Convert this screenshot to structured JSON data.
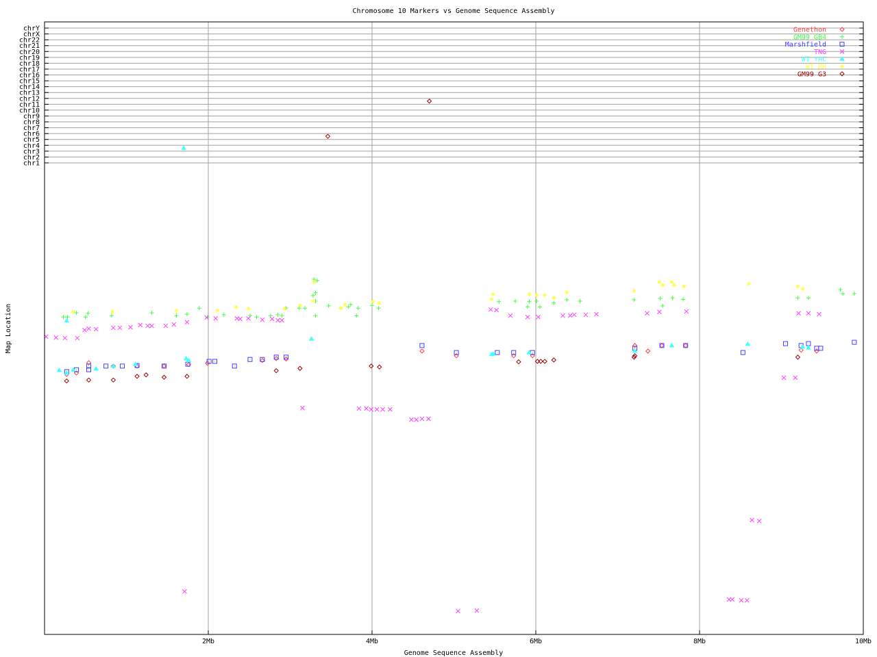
{
  "chart_data": {
    "type": "scatter",
    "title": "Chromosome 10 Markers vs Genome Sequence Assembly",
    "xlabel": "Genome Sequence Assembly",
    "ylabel": "Map Location",
    "xlim": [
      0,
      10
    ],
    "x_ticks": [
      {
        "value": 2,
        "label": "2Mb"
      },
      {
        "value": 4,
        "label": "4Mb"
      },
      {
        "value": 6,
        "label": "6Mb"
      },
      {
        "value": 8,
        "label": "8Mb"
      },
      {
        "value": 10,
        "label": "10Mb"
      }
    ],
    "y_chromosome_labels": [
      "chrY",
      "chrX",
      "chr22",
      "chr21",
      "chr20",
      "chr19",
      "chr18",
      "chr17",
      "chr16",
      "chr15",
      "chr14",
      "chr13",
      "chr12",
      "chr11",
      "chr10",
      "chr9",
      "chr8",
      "chr7",
      "chr6",
      "chr5",
      "chr4",
      "chr3",
      "chr2",
      "chr1"
    ],
    "grid": true,
    "legend_position": "top-right",
    "series": [
      {
        "name": "Genethon",
        "color": "#ff4040",
        "marker": "diamond",
        "points": [
          [
            0.27,
            55.7
          ],
          [
            0.39,
            56.0
          ],
          [
            0.54,
            58.2
          ],
          [
            0.84,
            57.5
          ],
          [
            1.13,
            57.5
          ],
          [
            1.46,
            57.5
          ],
          [
            1.76,
            57.8
          ],
          [
            1.99,
            58.1
          ],
          [
            2.66,
            58.7
          ],
          [
            2.83,
            59.1
          ],
          [
            2.95,
            59.0
          ],
          [
            4.61,
            60.7
          ],
          [
            5.03,
            59.7
          ],
          [
            5.73,
            59.7
          ],
          [
            5.96,
            59.7
          ],
          [
            7.21,
            61.9
          ],
          [
            7.37,
            60.7
          ],
          [
            7.54,
            61.9
          ],
          [
            7.83,
            61.9
          ],
          [
            9.24,
            60.9
          ],
          [
            9.43,
            60.7
          ]
        ],
        "chromosome_hits": []
      },
      {
        "name": "GM99 GB4",
        "color": "#40ff40",
        "marker": "plus",
        "points": [
          [
            0.23,
            68.0
          ],
          [
            0.28,
            68.0
          ],
          [
            0.39,
            68.9
          ],
          [
            0.5,
            68.0
          ],
          [
            0.53,
            68.8
          ],
          [
            0.82,
            68.3
          ],
          [
            1.31,
            68.9
          ],
          [
            1.61,
            68.3
          ],
          [
            1.74,
            68.6
          ],
          [
            1.89,
            69.9
          ],
          [
            1.99,
            68.0
          ],
          [
            2.19,
            68.5
          ],
          [
            2.51,
            68.3
          ],
          [
            2.59,
            68.0
          ],
          [
            2.76,
            68.3
          ],
          [
            2.85,
            68.5
          ],
          [
            2.9,
            68.3
          ],
          [
            2.95,
            69.9
          ],
          [
            3.11,
            69.9
          ],
          [
            3.18,
            69.9
          ],
          [
            3.31,
            68.3
          ],
          [
            3.28,
            72.6
          ],
          [
            3.31,
            73.2
          ],
          [
            3.33,
            75.8
          ],
          [
            3.29,
            76.1
          ],
          [
            3.31,
            71.4
          ],
          [
            3.47,
            70.4
          ],
          [
            3.62,
            69.9
          ],
          [
            3.71,
            70.2
          ],
          [
            3.74,
            70.7
          ],
          [
            3.81,
            68.3
          ],
          [
            3.83,
            69.9
          ],
          [
            4.0,
            70.5
          ],
          [
            4.08,
            69.9
          ],
          [
            5.55,
            71.3
          ],
          [
            5.75,
            71.4
          ],
          [
            5.9,
            70.2
          ],
          [
            5.92,
            71.3
          ],
          [
            6.01,
            71.4
          ],
          [
            6.05,
            70.2
          ],
          [
            6.22,
            71.0
          ],
          [
            6.38,
            71.7
          ],
          [
            6.54,
            71.4
          ],
          [
            7.2,
            71.7
          ],
          [
            7.52,
            72.0
          ],
          [
            7.55,
            70.4
          ],
          [
            7.67,
            72.1
          ],
          [
            7.8,
            71.8
          ],
          [
            9.2,
            72.1
          ],
          [
            9.33,
            72.1
          ],
          [
            9.72,
            73.9
          ],
          [
            9.75,
            73.0
          ],
          [
            9.89,
            73.0
          ]
        ],
        "chromosome_hits": []
      },
      {
        "name": "Marshfield",
        "color": "#4040ff",
        "marker": "square",
        "points": [
          [
            0.27,
            56.3
          ],
          [
            0.39,
            56.7
          ],
          [
            0.54,
            56.7
          ],
          [
            0.54,
            57.5
          ],
          [
            0.75,
            57.5
          ],
          [
            0.95,
            57.5
          ],
          [
            1.13,
            57.6
          ],
          [
            1.46,
            57.5
          ],
          [
            1.75,
            57.9
          ],
          [
            2.01,
            58.5
          ],
          [
            2.08,
            58.5
          ],
          [
            2.32,
            57.5
          ],
          [
            2.51,
            58.9
          ],
          [
            2.66,
            58.9
          ],
          [
            2.83,
            59.4
          ],
          [
            2.95,
            59.4
          ],
          [
            4.61,
            61.9
          ],
          [
            5.03,
            60.4
          ],
          [
            5.53,
            60.4
          ],
          [
            5.73,
            60.4
          ],
          [
            5.96,
            60.4
          ],
          [
            7.21,
            61.3
          ],
          [
            7.54,
            61.9
          ],
          [
            7.83,
            61.9
          ],
          [
            8.53,
            60.4
          ],
          [
            9.05,
            62.3
          ],
          [
            9.24,
            61.9
          ],
          [
            9.33,
            62.3
          ],
          [
            9.43,
            61.3
          ],
          [
            9.48,
            61.3
          ],
          [
            9.89,
            62.6
          ]
        ],
        "chromosome_hits": []
      },
      {
        "name": "TNG",
        "color": "#ff40ff",
        "marker": "cross",
        "points": [
          [
            0.02,
            63.8
          ],
          [
            0.14,
            63.6
          ],
          [
            0.25,
            63.5
          ],
          [
            0.4,
            63.5
          ],
          [
            0.49,
            65.2
          ],
          [
            0.54,
            65.5
          ],
          [
            0.63,
            65.4
          ],
          [
            0.84,
            65.7
          ],
          [
            0.92,
            65.7
          ],
          [
            1.05,
            65.8
          ],
          [
            1.17,
            66.3
          ],
          [
            1.26,
            66.1
          ],
          [
            1.31,
            66.1
          ],
          [
            1.48,
            66.1
          ],
          [
            1.58,
            66.4
          ],
          [
            1.74,
            66.9
          ],
          [
            1.98,
            67.9
          ],
          [
            2.09,
            67.7
          ],
          [
            2.35,
            67.7
          ],
          [
            2.39,
            67.6
          ],
          [
            2.49,
            67.7
          ],
          [
            2.66,
            67.4
          ],
          [
            2.78,
            67.6
          ],
          [
            2.85,
            67.3
          ],
          [
            2.9,
            67.3
          ],
          [
            5.45,
            69.6
          ],
          [
            5.52,
            69.5
          ],
          [
            5.69,
            68.3
          ],
          [
            5.9,
            68.0
          ],
          [
            6.03,
            68.0
          ],
          [
            6.33,
            68.3
          ],
          [
            6.42,
            68.3
          ],
          [
            6.47,
            68.5
          ],
          [
            6.61,
            68.5
          ],
          [
            6.74,
            68.6
          ],
          [
            7.36,
            68.8
          ],
          [
            7.51,
            69.1
          ],
          [
            7.84,
            69.2
          ],
          [
            9.21,
            68.8
          ],
          [
            9.33,
            68.8
          ],
          [
            9.46,
            68.6
          ],
          [
            3.15,
            48.5
          ],
          [
            3.84,
            48.4
          ],
          [
            3.93,
            48.4
          ],
          [
            3.99,
            48.2
          ],
          [
            4.06,
            48.2
          ],
          [
            4.13,
            48.2
          ],
          [
            4.22,
            48.2
          ],
          [
            4.48,
            46.0
          ],
          [
            4.54,
            46.0
          ],
          [
            4.61,
            46.2
          ],
          [
            4.69,
            46.2
          ],
          [
            8.36,
            7.5
          ],
          [
            8.4,
            7.5
          ],
          [
            8.51,
            7.3
          ],
          [
            8.58,
            7.3
          ],
          [
            8.64,
            24.5
          ],
          [
            8.73,
            24.3
          ],
          [
            9.03,
            55.0
          ],
          [
            9.17,
            55.0
          ],
          [
            5.05,
            5.0
          ],
          [
            5.28,
            5.1
          ],
          [
            1.71,
            9.2
          ]
        ],
        "chromosome_hits": []
      },
      {
        "name": "WI YAC",
        "color": "#40ffff",
        "marker": "triangle",
        "points": [
          [
            0.18,
            56.6
          ],
          [
            0.27,
            56.0
          ],
          [
            0.35,
            56.7
          ],
          [
            0.63,
            56.9
          ],
          [
            0.84,
            57.5
          ],
          [
            1.11,
            57.9
          ],
          [
            1.73,
            59.1
          ],
          [
            1.76,
            58.7
          ],
          [
            3.26,
            63.3
          ],
          [
            5.46,
            60.0
          ],
          [
            5.48,
            60.1
          ],
          [
            5.92,
            60.4
          ],
          [
            7.21,
            60.7
          ],
          [
            7.66,
            61.9
          ],
          [
            8.59,
            62.2
          ],
          [
            9.26,
            61.6
          ],
          [
            9.33,
            61.4
          ],
          [
            0.27,
            67.2
          ]
        ],
        "chromosome_hits": [
          {
            "x": 1.7,
            "chr": "chr4"
          }
        ]
      },
      {
        "name": "WI RH",
        "color": "#ffff40",
        "marker": "asterisk",
        "points": [
          [
            0.35,
            69.1
          ],
          [
            0.83,
            69.2
          ],
          [
            1.61,
            69.4
          ],
          [
            2.11,
            69.4
          ],
          [
            2.34,
            70.1
          ],
          [
            2.49,
            69.8
          ],
          [
            2.93,
            69.8
          ],
          [
            3.12,
            70.5
          ],
          [
            3.29,
            75.5
          ],
          [
            3.28,
            71.4
          ],
          [
            3.62,
            69.9
          ],
          [
            3.67,
            70.7
          ],
          [
            4.01,
            71.3
          ],
          [
            4.09,
            71.0
          ],
          [
            5.46,
            71.8
          ],
          [
            5.48,
            72.9
          ],
          [
            5.92,
            72.9
          ],
          [
            6.01,
            72.7
          ],
          [
            6.11,
            72.7
          ],
          [
            6.22,
            72.1
          ],
          [
            6.38,
            73.3
          ],
          [
            7.2,
            73.6
          ],
          [
            7.51,
            75.5
          ],
          [
            7.55,
            74.8
          ],
          [
            7.66,
            75.5
          ],
          [
            7.69,
            74.8
          ],
          [
            7.81,
            74.6
          ],
          [
            8.6,
            75.1
          ],
          [
            9.2,
            74.6
          ],
          [
            9.26,
            74.0
          ]
        ],
        "chromosome_hits": []
      },
      {
        "name": "GM99 G3",
        "color": "#a00000",
        "marker": "diamond",
        "points": [
          [
            0.27,
            54.3
          ],
          [
            0.54,
            54.5
          ],
          [
            0.84,
            54.5
          ],
          [
            1.13,
            55.3
          ],
          [
            1.24,
            55.6
          ],
          [
            1.46,
            55.1
          ],
          [
            1.74,
            55.3
          ],
          [
            2.83,
            56.5
          ],
          [
            3.12,
            57.0
          ],
          [
            3.99,
            57.5
          ],
          [
            4.09,
            57.3
          ],
          [
            5.79,
            58.4
          ],
          [
            6.02,
            58.5
          ],
          [
            6.06,
            58.5
          ],
          [
            6.11,
            58.5
          ],
          [
            6.22,
            58.8
          ],
          [
            7.21,
            59.7
          ],
          [
            7.2,
            59.4
          ],
          [
            9.2,
            59.4
          ]
        ],
        "chromosome_hits": [
          {
            "x": 4.7,
            "chr": "chr12"
          },
          {
            "x": 3.46,
            "chr": "chr6"
          }
        ]
      }
    ]
  }
}
